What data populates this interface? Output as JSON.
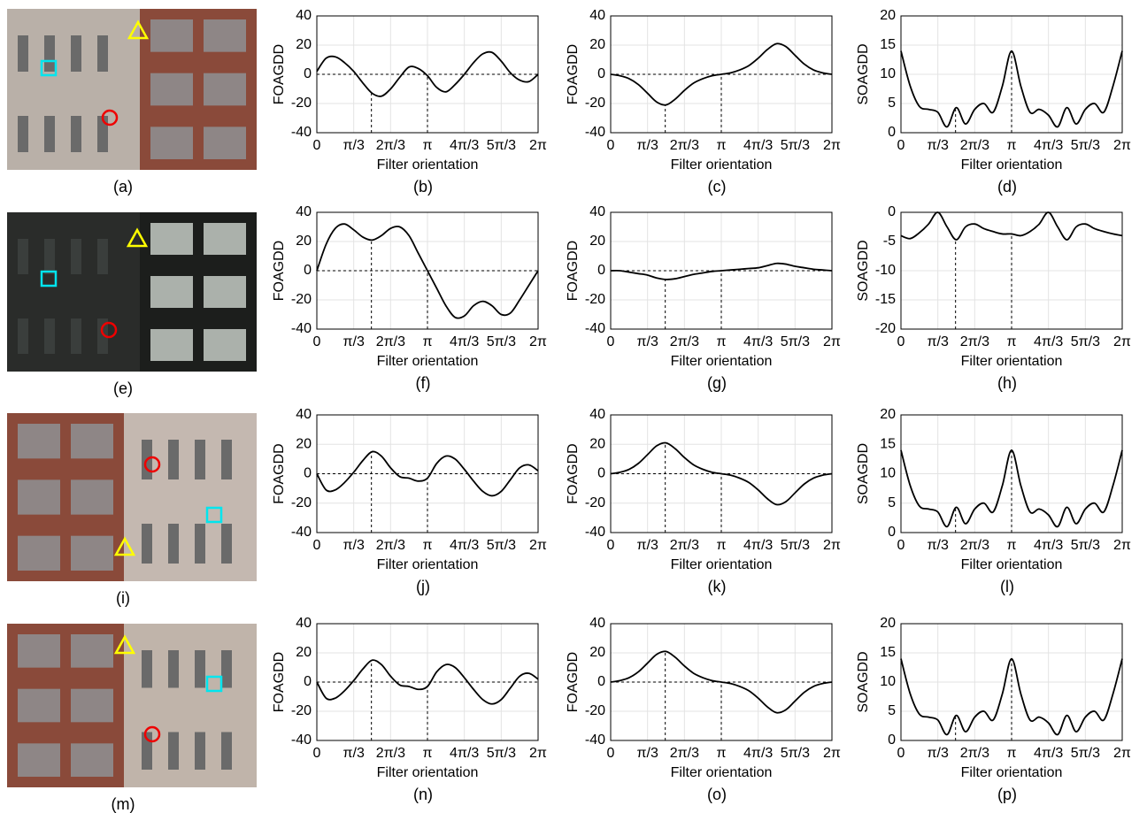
{
  "chart_data": [
    {
      "type": "line",
      "caption": "(b)",
      "xlabel": "Filter orientation",
      "ylabel": "FOAGDD",
      "xlim": [
        0,
        6.2832
      ],
      "xticks": [
        0,
        {
          "value": 1.0472,
          "label": "π/3"
        },
        {
          "value": 2.0944,
          "label": "2π/3"
        },
        {
          "value": 3.1416,
          "label": "π"
        },
        {
          "value": 4.1888,
          "label": "4π/3"
        },
        {
          "value": 5.236,
          "label": "5π/3"
        },
        {
          "value": 6.2832,
          "label": "2π"
        }
      ],
      "ylim": [
        -40,
        40
      ],
      "yticks": [
        -40,
        -20,
        0,
        20,
        40
      ],
      "grid": true,
      "color": "#000000",
      "reference_line": 0,
      "vlines": [
        1.55,
        3.1416
      ],
      "x": [
        0,
        0.2618,
        0.5236,
        0.7854,
        1.0472,
        1.309,
        1.5708,
        1.8326,
        2.0944,
        2.3562,
        2.618,
        2.8798,
        3.1416,
        3.4034,
        3.6652,
        3.927,
        4.1888,
        4.4506,
        4.7124,
        4.9742,
        5.236,
        5.4978,
        5.7596,
        6.0214,
        6.2832
      ],
      "values": [
        2,
        11,
        12,
        8,
        2,
        -6,
        -13,
        -15,
        -10,
        -2,
        5,
        4,
        -1,
        -9,
        -12,
        -7,
        0,
        8,
        14,
        15,
        9,
        1,
        -4,
        -5,
        0
      ]
    },
    {
      "type": "line",
      "caption": "(c)",
      "xlabel": "Filter orientation",
      "ylabel": "FOAGDD",
      "xlim": [
        0,
        6.2832
      ],
      "xticks": [
        0,
        {
          "value": 1.0472,
          "label": "π/3"
        },
        {
          "value": 2.0944,
          "label": "2π/3"
        },
        {
          "value": 3.1416,
          "label": "π"
        },
        {
          "value": 4.1888,
          "label": "4π/3"
        },
        {
          "value": 5.236,
          "label": "5π/3"
        },
        {
          "value": 6.2832,
          "label": "2π"
        }
      ],
      "ylim": [
        -40,
        40
      ],
      "yticks": [
        -40,
        -20,
        0,
        20,
        40
      ],
      "grid": true,
      "color": "#000000",
      "reference_line": 0,
      "vlines": [
        1.55,
        3.1416
      ],
      "x": [
        0,
        0.2618,
        0.5236,
        0.7854,
        1.0472,
        1.309,
        1.5708,
        1.8326,
        2.0944,
        2.3562,
        2.618,
        2.8798,
        3.1416,
        3.4034,
        3.6652,
        3.927,
        4.1888,
        4.4506,
        4.7124,
        4.9742,
        5.236,
        5.4978,
        5.7596,
        6.0214,
        6.2832
      ],
      "values": [
        0,
        -1,
        -3,
        -7,
        -13,
        -19,
        -21,
        -17,
        -11,
        -6,
        -3,
        -1,
        0,
        1,
        3,
        6,
        11,
        17,
        21,
        19,
        13,
        7,
        3,
        1,
        0
      ]
    },
    {
      "type": "line",
      "caption": "(d)",
      "xlabel": "Filter orientation",
      "ylabel": "SOAGDD",
      "xlim": [
        0,
        6.2832
      ],
      "xticks": [
        0,
        {
          "value": 1.0472,
          "label": "π/3"
        },
        {
          "value": 2.0944,
          "label": "2π/3"
        },
        {
          "value": 3.1416,
          "label": "π"
        },
        {
          "value": 4.1888,
          "label": "4π/3"
        },
        {
          "value": 5.236,
          "label": "5π/3"
        },
        {
          "value": 6.2832,
          "label": "2π"
        }
      ],
      "ylim": [
        0,
        20
      ],
      "yticks": [
        0,
        5,
        10,
        15,
        20
      ],
      "grid": true,
      "color": "#000000",
      "vlines": [
        1.55,
        3.1416
      ],
      "x": [
        0,
        0.2618,
        0.5236,
        0.7854,
        1.0472,
        1.309,
        1.5708,
        1.8326,
        2.0944,
        2.3562,
        2.618,
        2.8798,
        3.1416,
        3.4034,
        3.6652,
        3.927,
        4.1888,
        4.4506,
        4.7124,
        4.9742,
        5.236,
        5.4978,
        5.7596,
        6.0214,
        6.2832
      ],
      "values": [
        14,
        8,
        4.5,
        4,
        3.5,
        1,
        4.3,
        1.5,
        4,
        5,
        3.5,
        8,
        14,
        8,
        3.5,
        4,
        3,
        1,
        4.3,
        1.5,
        4,
        5,
        3.5,
        8,
        14
      ]
    },
    {
      "type": "line",
      "caption": "(f)",
      "xlabel": "Filter orientation",
      "ylabel": "FOAGDD",
      "xlim": [
        0,
        6.2832
      ],
      "xticks": [
        0,
        {
          "value": 1.0472,
          "label": "π/3"
        },
        {
          "value": 2.0944,
          "label": "2π/3"
        },
        {
          "value": 3.1416,
          "label": "π"
        },
        {
          "value": 4.1888,
          "label": "4π/3"
        },
        {
          "value": 5.236,
          "label": "5π/3"
        },
        {
          "value": 6.2832,
          "label": "2π"
        }
      ],
      "ylim": [
        -40,
        40
      ],
      "yticks": [
        -40,
        -20,
        0,
        20,
        40
      ],
      "grid": true,
      "color": "#000000",
      "reference_line": 0,
      "vlines": [
        1.55,
        3.1416
      ],
      "x": [
        0,
        0.2618,
        0.5236,
        0.7854,
        1.0472,
        1.309,
        1.5708,
        1.8326,
        2.0944,
        2.3562,
        2.618,
        2.8798,
        3.1416,
        3.4034,
        3.6652,
        3.927,
        4.1888,
        4.4506,
        4.7124,
        4.9742,
        5.236,
        5.4978,
        5.7596,
        6.0214,
        6.2832
      ],
      "values": [
        0,
        18,
        29,
        32,
        28,
        23,
        21,
        24,
        29,
        30,
        24,
        12,
        0,
        -12,
        -24,
        -32,
        -31,
        -24,
        -21,
        -24,
        -30,
        -29,
        -20,
        -10,
        0
      ]
    },
    {
      "type": "line",
      "caption": "(g)",
      "xlabel": "Filter orientation",
      "ylabel": "FOAGDD",
      "xlim": [
        0,
        6.2832
      ],
      "xticks": [
        0,
        {
          "value": 1.0472,
          "label": "π/3"
        },
        {
          "value": 2.0944,
          "label": "2π/3"
        },
        {
          "value": 3.1416,
          "label": "π"
        },
        {
          "value": 4.1888,
          "label": "4π/3"
        },
        {
          "value": 5.236,
          "label": "5π/3"
        },
        {
          "value": 6.2832,
          "label": "2π"
        }
      ],
      "ylim": [
        -40,
        40
      ],
      "yticks": [
        -40,
        -20,
        0,
        20,
        40
      ],
      "grid": true,
      "color": "#000000",
      "reference_line": 0,
      "vlines": [
        1.55,
        3.1416
      ],
      "x": [
        0,
        0.2618,
        0.5236,
        0.7854,
        1.0472,
        1.309,
        1.5708,
        1.8326,
        2.0944,
        2.3562,
        2.618,
        2.8798,
        3.1416,
        3.4034,
        3.6652,
        3.927,
        4.1888,
        4.4506,
        4.7124,
        4.9742,
        5.236,
        5.4978,
        5.7596,
        6.0214,
        6.2832
      ],
      "values": [
        0,
        0,
        -1,
        -2,
        -3,
        -5,
        -6,
        -5.5,
        -4,
        -2.5,
        -1.5,
        -0.5,
        0,
        0.5,
        1,
        1.5,
        2,
        3.5,
        5,
        4.5,
        3,
        2,
        1,
        0.5,
        0
      ]
    },
    {
      "type": "line",
      "caption": "(h)",
      "xlabel": "Filter orientation",
      "ylabel": "SOAGDD",
      "xlim": [
        0,
        6.2832
      ],
      "xticks": [
        0,
        {
          "value": 1.0472,
          "label": "π/3"
        },
        {
          "value": 2.0944,
          "label": "2π/3"
        },
        {
          "value": 3.1416,
          "label": "π"
        },
        {
          "value": 4.1888,
          "label": "4π/3"
        },
        {
          "value": 5.236,
          "label": "5π/3"
        },
        {
          "value": 6.2832,
          "label": "2π"
        }
      ],
      "ylim": [
        -20,
        0
      ],
      "yticks": [
        -20,
        -15,
        -10,
        -5,
        0
      ],
      "grid": true,
      "color": "#000000",
      "vlines": [
        1.55,
        3.1416
      ],
      "x": [
        0,
        0.2618,
        0.5236,
        0.7854,
        1.0472,
        1.309,
        1.5708,
        1.8326,
        2.0944,
        2.3562,
        2.618,
        2.8798,
        3.1416,
        3.4034,
        3.6652,
        3.927,
        4.1888,
        4.4506,
        4.7124,
        4.9742,
        5.236,
        5.4978,
        5.7596,
        6.0214,
        6.2832
      ],
      "values": [
        -4,
        -4.5,
        -3.5,
        -2,
        0,
        -2.5,
        -4.7,
        -2.5,
        -2,
        -2.8,
        -3.3,
        -3.7,
        -3.7,
        -4,
        -3.3,
        -2,
        0,
        -2.5,
        -4.7,
        -2.5,
        -2,
        -2.8,
        -3.3,
        -3.7,
        -4
      ]
    },
    {
      "type": "line",
      "caption": "(j)",
      "xlabel": "Filter orientation",
      "ylabel": "FOAGDD",
      "xlim": [
        0,
        6.2832
      ],
      "xticks": [
        0,
        {
          "value": 1.0472,
          "label": "π/3"
        },
        {
          "value": 2.0944,
          "label": "2π/3"
        },
        {
          "value": 3.1416,
          "label": "π"
        },
        {
          "value": 4.1888,
          "label": "4π/3"
        },
        {
          "value": 5.236,
          "label": "5π/3"
        },
        {
          "value": 6.2832,
          "label": "2π"
        }
      ],
      "ylim": [
        -40,
        40
      ],
      "yticks": [
        -40,
        -20,
        0,
        20,
        40
      ],
      "grid": true,
      "color": "#000000",
      "reference_line": 0,
      "vlines": [
        1.55,
        3.1416
      ],
      "x": [
        0,
        0.2618,
        0.5236,
        0.7854,
        1.0472,
        1.309,
        1.5708,
        1.8326,
        2.0944,
        2.3562,
        2.618,
        2.8798,
        3.1416,
        3.4034,
        3.6652,
        3.927,
        4.1888,
        4.4506,
        4.7124,
        4.9742,
        5.236,
        5.4978,
        5.7596,
        6.0214,
        6.2832
      ],
      "values": [
        0,
        -11,
        -11,
        -6,
        1,
        9,
        15,
        12,
        4,
        -2,
        -3,
        -5,
        -3,
        7,
        12,
        10,
        3,
        -5,
        -12,
        -15,
        -12,
        -4,
        4,
        6,
        2
      ]
    },
    {
      "type": "line",
      "caption": "(k)",
      "xlabel": "Filter orientation",
      "ylabel": "FOAGDD",
      "xlim": [
        0,
        6.2832
      ],
      "xticks": [
        0,
        {
          "value": 1.0472,
          "label": "π/3"
        },
        {
          "value": 2.0944,
          "label": "2π/3"
        },
        {
          "value": 3.1416,
          "label": "π"
        },
        {
          "value": 4.1888,
          "label": "4π/3"
        },
        {
          "value": 5.236,
          "label": "5π/3"
        },
        {
          "value": 6.2832,
          "label": "2π"
        }
      ],
      "ylim": [
        -40,
        40
      ],
      "yticks": [
        -40,
        -20,
        0,
        20,
        40
      ],
      "grid": true,
      "color": "#000000",
      "reference_line": 0,
      "vlines": [
        1.55,
        3.1416
      ],
      "x": [
        0,
        0.2618,
        0.5236,
        0.7854,
        1.0472,
        1.309,
        1.5708,
        1.8326,
        2.0944,
        2.3562,
        2.618,
        2.8798,
        3.1416,
        3.4034,
        3.6652,
        3.927,
        4.1888,
        4.4506,
        4.7124,
        4.9742,
        5.236,
        5.4978,
        5.7596,
        6.0214,
        6.2832
      ],
      "values": [
        0,
        1,
        3,
        7,
        13,
        19,
        21,
        17,
        11,
        6,
        3,
        1,
        0,
        -1,
        -3,
        -6,
        -11,
        -17,
        -21,
        -19,
        -13,
        -7,
        -3,
        -1,
        0
      ]
    },
    {
      "type": "line",
      "caption": "(l)",
      "xlabel": "Filter orientation",
      "ylabel": "SOAGDD",
      "xlim": [
        0,
        6.2832
      ],
      "xticks": [
        0,
        {
          "value": 1.0472,
          "label": "π/3"
        },
        {
          "value": 2.0944,
          "label": "2π/3"
        },
        {
          "value": 3.1416,
          "label": "π"
        },
        {
          "value": 4.1888,
          "label": "4π/3"
        },
        {
          "value": 5.236,
          "label": "5π/3"
        },
        {
          "value": 6.2832,
          "label": "2π"
        }
      ],
      "ylim": [
        0,
        20
      ],
      "yticks": [
        0,
        5,
        10,
        15,
        20
      ],
      "grid": true,
      "color": "#000000",
      "vlines": [
        1.55,
        3.1416
      ],
      "x": [
        0,
        0.2618,
        0.5236,
        0.7854,
        1.0472,
        1.309,
        1.5708,
        1.8326,
        2.0944,
        2.3562,
        2.618,
        2.8798,
        3.1416,
        3.4034,
        3.6652,
        3.927,
        4.1888,
        4.4506,
        4.7124,
        4.9742,
        5.236,
        5.4978,
        5.7596,
        6.0214,
        6.2832
      ],
      "values": [
        14,
        8,
        4.5,
        4,
        3.5,
        1,
        4.3,
        1.5,
        4,
        5,
        3.5,
        8,
        14,
        8,
        3.5,
        4,
        3,
        1,
        4.3,
        1.5,
        4,
        5,
        3.5,
        8,
        14
      ]
    },
    {
      "type": "line",
      "caption": "(n)",
      "xlabel": "Filter orientation",
      "ylabel": "FOAGDD",
      "xlim": [
        0,
        6.2832
      ],
      "xticks": [
        0,
        {
          "value": 1.0472,
          "label": "π/3"
        },
        {
          "value": 2.0944,
          "label": "2π/3"
        },
        {
          "value": 3.1416,
          "label": "π"
        },
        {
          "value": 4.1888,
          "label": "4π/3"
        },
        {
          "value": 5.236,
          "label": "5π/3"
        },
        {
          "value": 6.2832,
          "label": "2π"
        }
      ],
      "ylim": [
        -40,
        40
      ],
      "yticks": [
        -40,
        -20,
        0,
        20,
        40
      ],
      "grid": true,
      "color": "#000000",
      "reference_line": 0,
      "vlines": [
        1.55,
        3.1416
      ],
      "x": [
        0,
        0.2618,
        0.5236,
        0.7854,
        1.0472,
        1.309,
        1.5708,
        1.8326,
        2.0944,
        2.3562,
        2.618,
        2.8798,
        3.1416,
        3.4034,
        3.6652,
        3.927,
        4.1888,
        4.4506,
        4.7124,
        4.9742,
        5.236,
        5.4978,
        5.7596,
        6.0214,
        6.2832
      ],
      "values": [
        0,
        -11,
        -11,
        -6,
        1,
        9,
        15,
        12,
        4,
        -2,
        -3,
        -5,
        -3,
        7,
        12,
        10,
        3,
        -5,
        -12,
        -15,
        -12,
        -4,
        4,
        6,
        2
      ]
    },
    {
      "type": "line",
      "caption": "(o)",
      "xlabel": "Filter orientation",
      "ylabel": "FOAGDD",
      "xlim": [
        0,
        6.2832
      ],
      "xticks": [
        0,
        {
          "value": 1.0472,
          "label": "π/3"
        },
        {
          "value": 2.0944,
          "label": "2π/3"
        },
        {
          "value": 3.1416,
          "label": "π"
        },
        {
          "value": 4.1888,
          "label": "4π/3"
        },
        {
          "value": 5.236,
          "label": "5π/3"
        },
        {
          "value": 6.2832,
          "label": "2π"
        }
      ],
      "ylim": [
        -40,
        40
      ],
      "yticks": [
        -40,
        -20,
        0,
        20,
        40
      ],
      "grid": true,
      "color": "#000000",
      "reference_line": 0,
      "vlines": [
        1.55,
        3.1416
      ],
      "x": [
        0,
        0.2618,
        0.5236,
        0.7854,
        1.0472,
        1.309,
        1.5708,
        1.8326,
        2.0944,
        2.3562,
        2.618,
        2.8798,
        3.1416,
        3.4034,
        3.6652,
        3.927,
        4.1888,
        4.4506,
        4.7124,
        4.9742,
        5.236,
        5.4978,
        5.7596,
        6.0214,
        6.2832
      ],
      "values": [
        0,
        1,
        3,
        7,
        13,
        19,
        21,
        17,
        11,
        6,
        3,
        1,
        0,
        -1,
        -3,
        -6,
        -11,
        -17,
        -21,
        -19,
        -13,
        -7,
        -3,
        -1,
        0
      ]
    },
    {
      "type": "line",
      "caption": "(p)",
      "xlabel": "Filter orientation",
      "ylabel": "SOAGDD",
      "xlim": [
        0,
        6.2832
      ],
      "xticks": [
        0,
        {
          "value": 1.0472,
          "label": "π/3"
        },
        {
          "value": 2.0944,
          "label": "2π/3"
        },
        {
          "value": 3.1416,
          "label": "π"
        },
        {
          "value": 4.1888,
          "label": "4π/3"
        },
        {
          "value": 5.236,
          "label": "5π/3"
        },
        {
          "value": 6.2832,
          "label": "2π"
        }
      ],
      "ylim": [
        0,
        20
      ],
      "yticks": [
        0,
        5,
        10,
        15,
        20
      ],
      "grid": true,
      "color": "#000000",
      "vlines": [
        1.55,
        3.1416
      ],
      "x": [
        0,
        0.2618,
        0.5236,
        0.7854,
        1.0472,
        1.309,
        1.5708,
        1.8326,
        2.0944,
        2.3562,
        2.618,
        2.8798,
        3.1416,
        3.4034,
        3.6652,
        3.927,
        4.1888,
        4.4506,
        4.7124,
        4.9742,
        5.236,
        5.4978,
        5.7596,
        6.0214,
        6.2832
      ],
      "values": [
        14,
        8,
        4.5,
        4,
        3.5,
        1,
        4.3,
        1.5,
        4,
        5,
        3.5,
        8,
        14,
        8,
        3.5,
        4,
        3,
        1,
        4.3,
        1.5,
        4,
        5,
        3.5,
        8,
        14
      ]
    }
  ],
  "images": [
    {
      "caption": "(a)"
    },
    {
      "caption": "(e)"
    },
    {
      "caption": "(i)"
    },
    {
      "caption": "(m)"
    }
  ]
}
